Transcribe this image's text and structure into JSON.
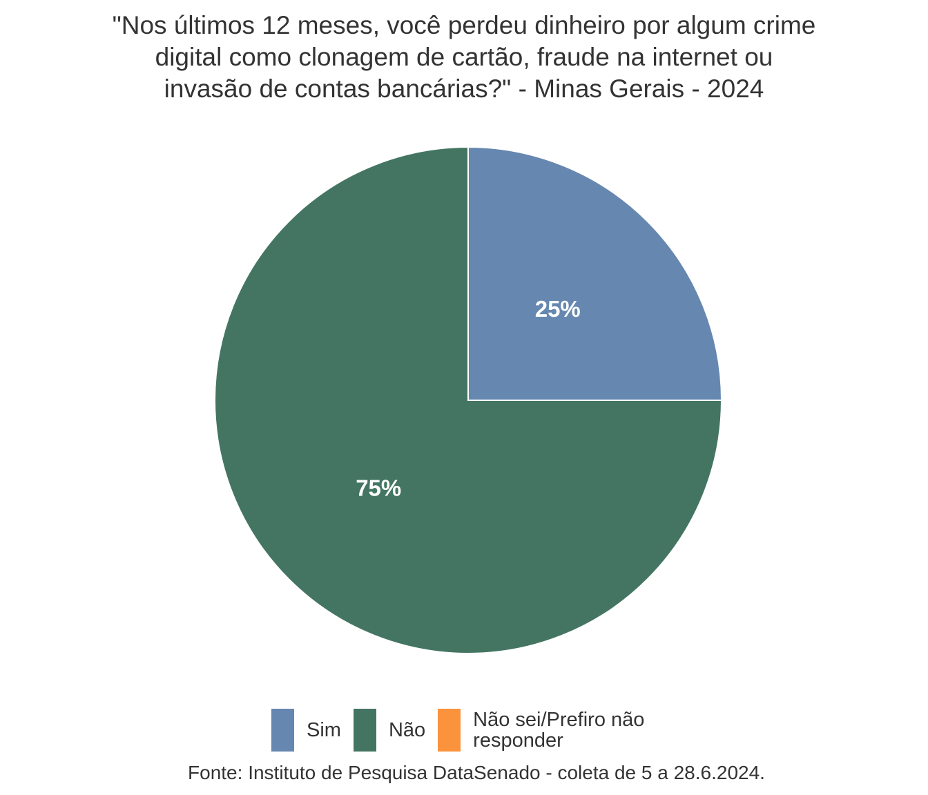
{
  "chart_data": {
    "type": "pie",
    "title_lines": [
      "\"Nos últimos 12 meses, você perdeu dinheiro por algum crime",
      "digital como clonagem de cartão, fraude na internet ou",
      "invasão de contas bancárias?\" - Minas Gerais - 2024"
    ],
    "slices": [
      {
        "name": "Sim",
        "value": 25,
        "label": "25%",
        "color": "#6687b0"
      },
      {
        "name": "Não",
        "value": 75,
        "label": "75%",
        "color": "#447563"
      },
      {
        "name": "Não sei/Prefiro não responder",
        "value": 0,
        "label": "",
        "color": "#fb923c"
      }
    ],
    "legend_position": "bottom",
    "caption": "Fonte: Instituto de Pesquisa DataSenado - coleta de 5 a 28.6.2024."
  }
}
